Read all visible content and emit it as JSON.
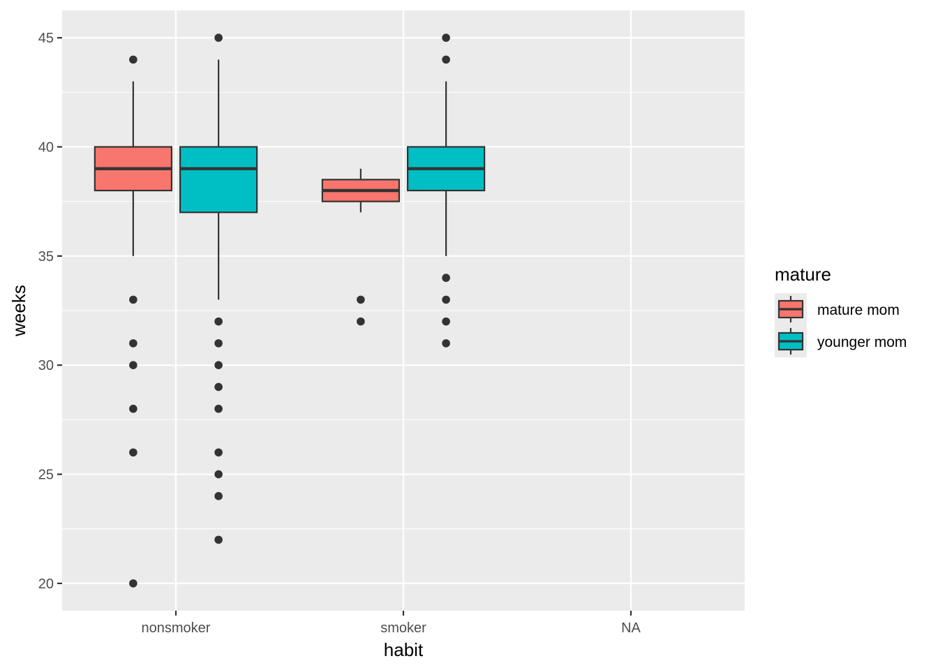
{
  "chart_data": {
    "type": "boxplot",
    "xlabel": "habit",
    "ylabel": "weeks",
    "categories": [
      "nonsmoker",
      "smoker",
      "NA"
    ],
    "ylim": [
      18.75,
      46.25
    ],
    "yticks": [
      20,
      25,
      30,
      35,
      40,
      45
    ],
    "grid": true,
    "legend": {
      "title": "mature",
      "position": "right"
    },
    "series": [
      {
        "name": "mature mom",
        "color": "#F8766D",
        "boxes": [
          {
            "category": "nonsmoker",
            "whisker_low": 35,
            "q1": 38,
            "median": 39,
            "q3": 40,
            "whisker_high": 43,
            "outliers": [
              44,
              33,
              31,
              30,
              28,
              26,
              20
            ]
          },
          {
            "category": "smoker",
            "whisker_low": 37,
            "q1": 37.5,
            "median": 38,
            "q3": 38.5,
            "whisker_high": 39,
            "outliers": [
              33,
              32
            ]
          }
        ]
      },
      {
        "name": "younger mom",
        "color": "#00BFC4",
        "boxes": [
          {
            "category": "nonsmoker",
            "whisker_low": 33,
            "q1": 37,
            "median": 39,
            "q3": 40,
            "whisker_high": 44,
            "outliers": [
              45,
              32,
              31,
              30,
              29,
              28,
              26,
              25,
              24,
              22
            ]
          },
          {
            "category": "smoker",
            "whisker_low": 35,
            "q1": 38,
            "median": 39,
            "q3": 40,
            "whisker_high": 43,
            "outliers": [
              45,
              44,
              34,
              33,
              32,
              31
            ]
          }
        ]
      }
    ]
  }
}
